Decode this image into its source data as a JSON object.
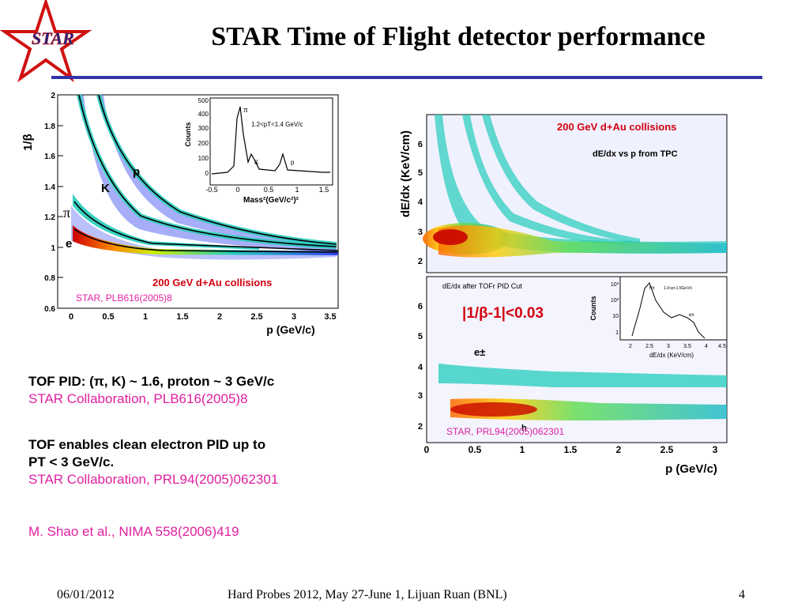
{
  "slide": {
    "title": "STAR Time of Flight detector performance",
    "logo_text": "STAR",
    "colors": {
      "rule": "#3333aa",
      "pink": "#e020a0",
      "red": "#d4000f",
      "star": "#d01010"
    }
  },
  "left_plot": {
    "y_label": "1/β",
    "x_label": "p (GeV/c)",
    "y_ticks": [
      "0.6",
      "0.8",
      "1",
      "1.2",
      "1.4",
      "1.6",
      "1.8",
      "2"
    ],
    "x_ticks": [
      "0",
      "0.5",
      "1",
      "1.5",
      "2",
      "2.5",
      "3",
      "3.5"
    ],
    "particle_labels": {
      "e": "e",
      "pi": "π",
      "k": "K",
      "p": "p"
    },
    "annotation_energy": "200 GeV d+Au collisions",
    "annotation_ref": "STAR, PLB616(2005)8",
    "inset": {
      "y_label": "Counts",
      "x_label": "Mass²(GeV/c²)²",
      "cut_label": "1.2<pT<1.4 GeV/c",
      "y_ticks": [
        "0",
        "100",
        "200",
        "300",
        "400",
        "500"
      ],
      "x_ticks": [
        "-0.5",
        "0",
        "0.5",
        "1",
        "1.5"
      ],
      "peak_labels": {
        "pi": "π",
        "k": "K",
        "p": "p"
      }
    }
  },
  "right_plot": {
    "y_label": "dE/dx (KeV/cm)",
    "x_label": "p (GeV/c)",
    "x_ticks": [
      "0",
      "0.5",
      "1",
      "1.5",
      "2",
      "2.5",
      "3"
    ],
    "top": {
      "y_ticks": [
        "2",
        "3",
        "4",
        "5",
        "6"
      ],
      "annotation_energy": "200 GeV d+Au collisions",
      "caption": "dE/dx vs p from TPC"
    },
    "bottom": {
      "y_ticks": [
        "2",
        "3",
        "4",
        "5",
        "6"
      ],
      "caption": "dE/dx after TOFr PID Cut",
      "cut": "|1/β-1|<0.03",
      "electron_label": "e±",
      "hadron_label": "h",
      "annotation_ref": "STAR, PRL94(2005)062301",
      "inset": {
        "y_label": "Counts",
        "x_label": "dE/dx (KeV/cm)",
        "y_ticks": [
          "1",
          "10",
          "10²",
          "10³"
        ],
        "x_ticks": [
          "2",
          "2.5",
          "3",
          "3.5",
          "4",
          "4.5"
        ],
        "range_label": "1.0<p<1.5GeV/c",
        "h_label": "h±",
        "e_label": "e±"
      }
    }
  },
  "bullets": {
    "b1_bold": "TOF PID:  (π, K) ~ 1.6, proton ~ 3 GeV/c",
    "b1_ref": "STAR Collaboration, PLB616(2005)8",
    "b2_bold_line1": "TOF enables clean electron PID up to",
    "b2_bold_line2": "PT < 3 GeV/c.",
    "b2_ref": "STAR Collaboration, PRL94(2005)062301",
    "b3_ref": "M. Shao et al., NIMA 558(2006)419"
  },
  "footer": {
    "date": "06/01/2012",
    "center": "Hard Probes 2012, May 27-June 1, Lijuan Ruan (BNL)",
    "page": "4"
  }
}
